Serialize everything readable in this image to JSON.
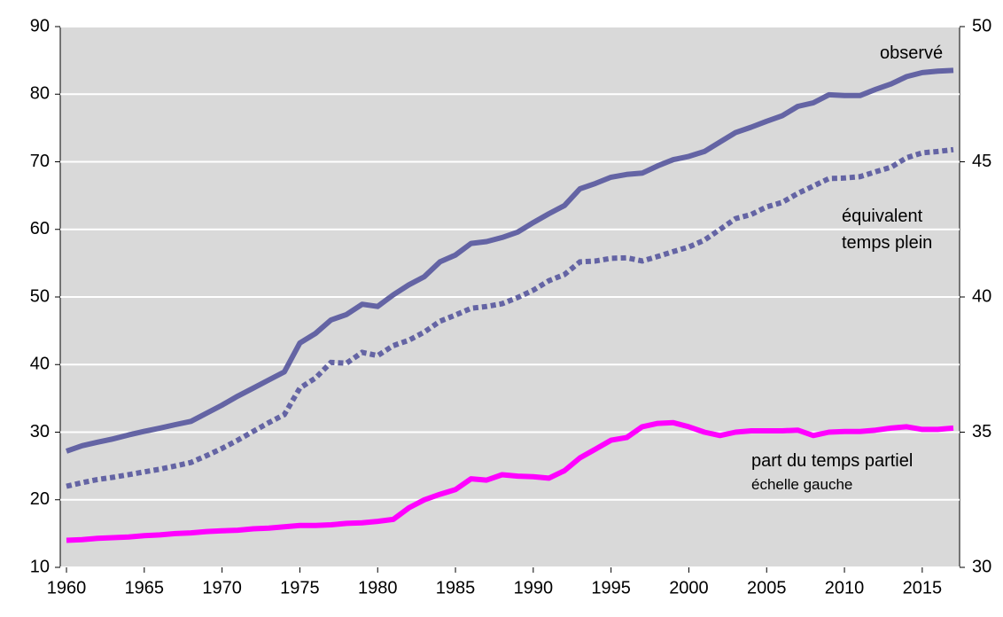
{
  "chart_data": {
    "type": "line",
    "x": [
      1960,
      1961,
      1962,
      1963,
      1964,
      1965,
      1966,
      1967,
      1968,
      1969,
      1970,
      1971,
      1972,
      1973,
      1974,
      1975,
      1976,
      1977,
      1978,
      1979,
      1980,
      1981,
      1982,
      1983,
      1984,
      1985,
      1986,
      1987,
      1988,
      1989,
      1990,
      1991,
      1992,
      1993,
      1994,
      1995,
      1996,
      1997,
      1998,
      1999,
      2000,
      2001,
      2002,
      2003,
      2004,
      2005,
      2006,
      2007,
      2008,
      2009,
      2010,
      2011,
      2012,
      2013,
      2014,
      2015,
      2016,
      2017
    ],
    "xlim": [
      1959.6,
      2017.4
    ],
    "xticks": [
      1960,
      1965,
      1970,
      1975,
      1980,
      1985,
      1990,
      1995,
      2000,
      2005,
      2010,
      2015
    ],
    "ylim": [
      10,
      90
    ],
    "yticks": [
      10,
      20,
      30,
      40,
      50,
      60,
      70,
      80,
      90
    ],
    "y2lim": [
      30,
      50
    ],
    "y2ticks": [
      30,
      35,
      40,
      45,
      50
    ],
    "grid": true,
    "annotations": [
      "échelle gauche"
    ],
    "series": [
      {
        "name": "observé",
        "color": "#6464a4",
        "axis": "y2",
        "dashed": false,
        "values": [
          34.3,
          34.5,
          34.63,
          34.75,
          34.9,
          35.03,
          35.15,
          35.28,
          35.4,
          35.7,
          36,
          36.33,
          36.63,
          36.93,
          37.23,
          38.3,
          38.65,
          39.15,
          39.35,
          39.73,
          39.65,
          40.08,
          40.45,
          40.75,
          41.3,
          41.55,
          41.98,
          42.05,
          42.2,
          42.4,
          42.75,
          43.08,
          43.38,
          44,
          44.2,
          44.43,
          44.53,
          44.58,
          44.85,
          45.08,
          45.2,
          45.38,
          45.73,
          46.08,
          46.28,
          46.5,
          46.7,
          47.05,
          47.18,
          47.48,
          47.45,
          47.45,
          47.68,
          47.88,
          48.15,
          48.3,
          48.35,
          48.38
        ]
      },
      {
        "name": "équivalent temps plein",
        "color": "#6464a4",
        "axis": "y2",
        "dashed": true,
        "values": [
          33,
          33.13,
          33.25,
          33.33,
          33.43,
          33.53,
          33.63,
          33.75,
          33.88,
          34.13,
          34.4,
          34.7,
          35.03,
          35.35,
          35.65,
          36.63,
          37,
          37.58,
          37.55,
          37.95,
          37.83,
          38.2,
          38.4,
          38.7,
          39.1,
          39.33,
          39.58,
          39.65,
          39.75,
          39.98,
          40.25,
          40.6,
          40.83,
          41.3,
          41.33,
          41.43,
          41.45,
          41.33,
          41.5,
          41.68,
          41.85,
          42.1,
          42.5,
          42.9,
          43.05,
          43.33,
          43.5,
          43.83,
          44.1,
          44.38,
          44.4,
          44.45,
          44.63,
          44.8,
          45.15,
          45.33,
          45.38,
          45.45
        ]
      },
      {
        "name": "part du temps partiel",
        "color": "#ff00ff",
        "dashed": false,
        "values": [
          14,
          14.1,
          14.3,
          14.4,
          14.5,
          14.7,
          14.8,
          15,
          15.1,
          15.3,
          15.4,
          15.5,
          15.7,
          15.8,
          16,
          16.2,
          16.2,
          16.3,
          16.5,
          16.6,
          16.8,
          17.1,
          18.8,
          20,
          20.8,
          21.5,
          23.1,
          22.9,
          23.7,
          23.5,
          23.4,
          23.2,
          24.3,
          26.2,
          27.5,
          28.8,
          29.2,
          30.8,
          31.3,
          31.4,
          30.8,
          30,
          29.5,
          30,
          30.2,
          30.2,
          30.2,
          30.3,
          29.5,
          30,
          30.1,
          30.1,
          30.3,
          30.6,
          30.8,
          30.4,
          30.4,
          30.6
        ]
      }
    ]
  }
}
